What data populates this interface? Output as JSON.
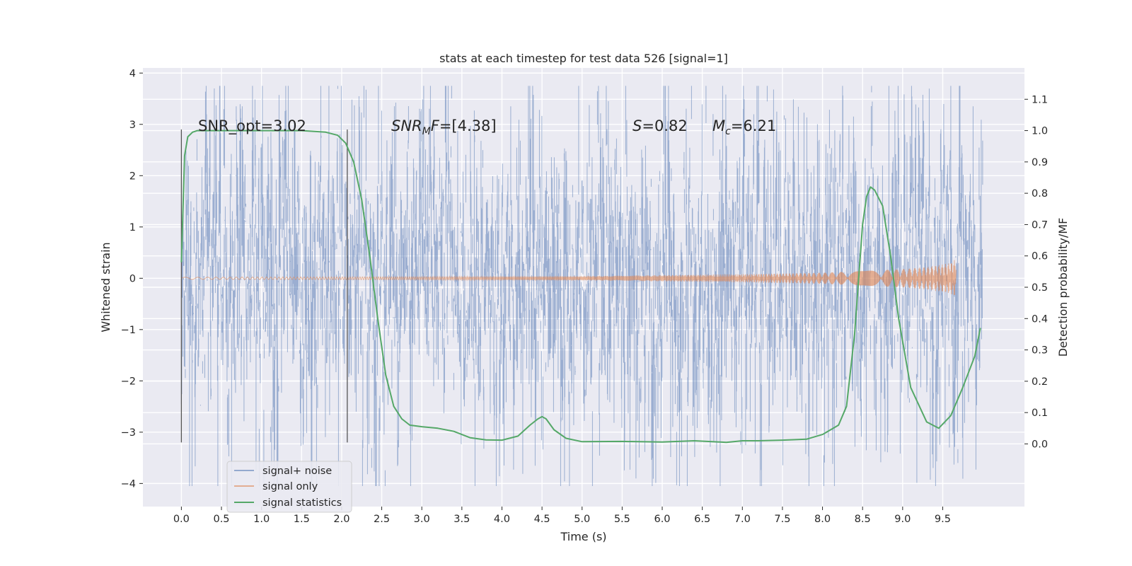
{
  "chart_data": {
    "type": "line",
    "title": "stats at each timestep for test data 526 [signal=1]",
    "xlabel": "Time (s)",
    "ylabel": "Whitened strain",
    "y2label": "Detection probability/MF",
    "xlim": [
      -0.48,
      10.52
    ],
    "ylim": [
      -4.45,
      4.1
    ],
    "y2lim": [
      -0.2,
      1.2
    ],
    "x_ticks": [
      "0.0",
      "0.5",
      "1.0",
      "1.5",
      "2.0",
      "2.5",
      "3.0",
      "3.5",
      "4.0",
      "4.5",
      "5.0",
      "5.5",
      "6.0",
      "6.5",
      "7.0",
      "7.5",
      "8.0",
      "8.5",
      "9.0",
      "9.5"
    ],
    "x_tick_values": [
      0.0,
      0.5,
      1.0,
      1.5,
      2.0,
      2.5,
      3.0,
      3.5,
      4.0,
      4.5,
      5.0,
      5.5,
      6.0,
      6.5,
      7.0,
      7.5,
      8.0,
      8.5,
      9.0,
      9.5
    ],
    "y_ticks": [
      "4",
      "3",
      "2",
      "1",
      "0",
      "−1",
      "−2",
      "−3",
      "−4"
    ],
    "y_tick_values": [
      4,
      3,
      2,
      1,
      0,
      -1,
      -2,
      -3,
      -4
    ],
    "y2_ticks": [
      "1.1",
      "1.0",
      "0.9",
      "0.8",
      "0.7",
      "0.6",
      "0.5",
      "0.4",
      "0.3",
      "0.2",
      "0.1",
      "0.0"
    ],
    "y2_tick_values": [
      1.1,
      1.0,
      0.9,
      0.8,
      0.7,
      0.6,
      0.5,
      0.4,
      0.3,
      0.2,
      0.1,
      0.0
    ],
    "grid": true,
    "legend_position": "lower-left",
    "series": [
      {
        "name": "signal+ noise",
        "color": "#4c72b0",
        "axis": "left",
        "x_range": [
          0.0,
          10.0
        ],
        "typical_range": [
          -2.0,
          2.2
        ],
        "extreme_range": [
          -4.05,
          3.75
        ]
      },
      {
        "name": "signal only",
        "color": "#dd8452",
        "axis": "left",
        "x_range": [
          0.0,
          9.67
        ],
        "envelope": {
          "x": [
            0.0,
            3.0,
            5.0,
            6.0,
            7.0,
            8.0,
            8.5,
            9.0,
            9.3,
            9.5,
            9.6,
            9.65
          ],
          "amplitude": [
            0.02,
            0.03,
            0.04,
            0.06,
            0.08,
            0.11,
            0.14,
            0.18,
            0.22,
            0.27,
            0.3,
            0.36
          ]
        }
      },
      {
        "name": "signal statistics",
        "color": "#55a868",
        "axis": "right",
        "x": [
          0.0,
          0.04,
          0.08,
          0.14,
          0.2,
          0.3,
          0.5,
          1.0,
          1.5,
          1.8,
          1.95,
          2.05,
          2.15,
          2.25,
          2.35,
          2.45,
          2.55,
          2.65,
          2.75,
          2.85,
          3.0,
          3.2,
          3.4,
          3.6,
          3.8,
          4.0,
          4.2,
          4.35,
          4.45,
          4.5,
          4.55,
          4.65,
          4.8,
          5.0,
          5.5,
          6.0,
          6.4,
          6.8,
          7.0,
          7.2,
          7.5,
          7.8,
          8.0,
          8.2,
          8.3,
          8.4,
          8.5,
          8.55,
          8.6,
          8.65,
          8.75,
          8.85,
          8.95,
          9.1,
          9.3,
          9.45,
          9.6,
          9.75,
          9.9,
          9.97
        ],
        "y": [
          0.58,
          0.92,
          0.98,
          0.995,
          1.0,
          1.0,
          1.0,
          1.0,
          1.0,
          0.995,
          0.985,
          0.96,
          0.9,
          0.78,
          0.6,
          0.4,
          0.22,
          0.12,
          0.08,
          0.06,
          0.055,
          0.05,
          0.04,
          0.02,
          0.013,
          0.012,
          0.025,
          0.06,
          0.08,
          0.087,
          0.08,
          0.045,
          0.018,
          0.007,
          0.008,
          0.006,
          0.01,
          0.005,
          0.01,
          0.01,
          0.012,
          0.015,
          0.03,
          0.06,
          0.12,
          0.35,
          0.7,
          0.79,
          0.82,
          0.81,
          0.76,
          0.6,
          0.4,
          0.18,
          0.07,
          0.05,
          0.09,
          0.18,
          0.28,
          0.37
        ]
      }
    ],
    "vertical_lines": [
      0.0,
      2.07
    ],
    "annotations": [
      {
        "text": "SNR_opt=3.02"
      },
      {
        "text": "SNR_MF=[4.38]"
      },
      {
        "text": "S=0.82"
      },
      {
        "text": "M_c=6.21"
      }
    ]
  }
}
